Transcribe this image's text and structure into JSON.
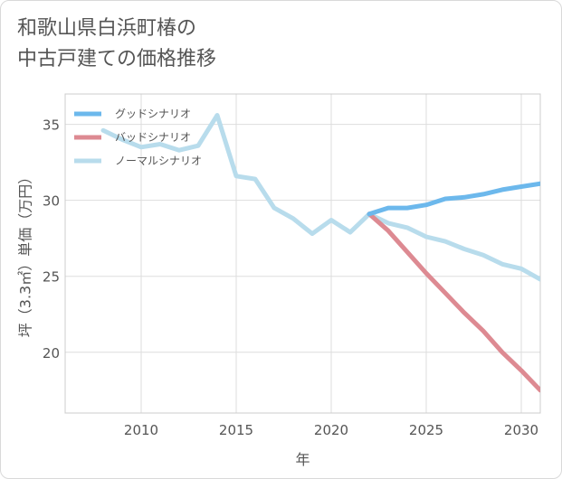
{
  "title": {
    "line1": "和歌山県白浜町椿の",
    "line2": "中古戸建ての価格推移"
  },
  "chart_data": {
    "type": "line",
    "xlabel": "年",
    "ylabel": "坪（3.3㎡）単価（万円）",
    "xlim": [
      2006,
      2031
    ],
    "ylim": [
      16,
      37
    ],
    "x_ticks": [
      2010,
      2015,
      2020,
      2025,
      2030
    ],
    "y_ticks": [
      20,
      25,
      30,
      35
    ],
    "grid": true,
    "legend_position": "top-left",
    "series": [
      {
        "name": "グッドシナリオ",
        "color": "#6cb8ec",
        "x": [
          2022,
          2023,
          2024,
          2025,
          2026,
          2027,
          2028,
          2029,
          2030,
          2031
        ],
        "y": [
          29.1,
          29.5,
          29.5,
          29.7,
          30.1,
          30.2,
          30.4,
          30.7,
          30.9,
          31.1
        ]
      },
      {
        "name": "バッドシナリオ",
        "color": "#dd8a92",
        "x": [
          2022,
          2023,
          2024,
          2025,
          2026,
          2027,
          2028,
          2029,
          2030,
          2031
        ],
        "y": [
          29.1,
          28.0,
          26.6,
          25.2,
          23.9,
          22.6,
          21.4,
          20.0,
          18.8,
          17.5
        ]
      },
      {
        "name": "ノーマルシナリオ",
        "color": "#b8dcec",
        "x": [
          2008,
          2009,
          2010,
          2011,
          2012,
          2013,
          2014,
          2015,
          2016,
          2017,
          2018,
          2019,
          2020,
          2021,
          2022,
          2023,
          2024,
          2025,
          2026,
          2027,
          2028,
          2029,
          2030,
          2031
        ],
        "y": [
          34.6,
          34.0,
          33.5,
          33.7,
          33.3,
          33.6,
          35.6,
          31.6,
          31.4,
          29.5,
          28.8,
          27.8,
          28.7,
          27.9,
          29.1,
          28.5,
          28.2,
          27.6,
          27.3,
          26.8,
          26.4,
          25.8,
          25.5,
          24.8
        ]
      }
    ]
  }
}
